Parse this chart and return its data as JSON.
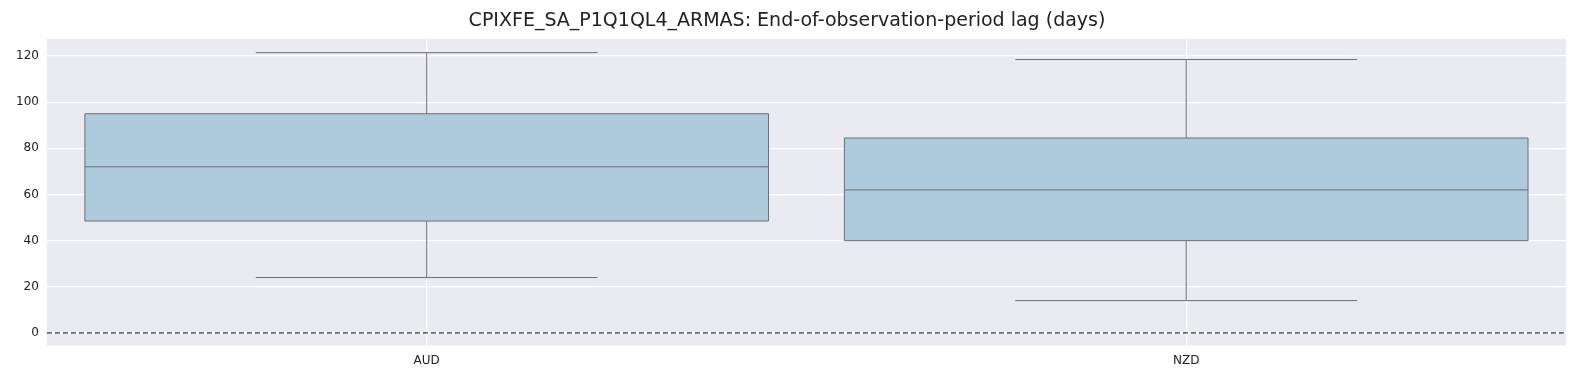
{
  "chart_data": {
    "type": "box",
    "title": "CPIXFE_SA_P1Q1QL4_ARMAS: End-of-observation-period lag (days)",
    "categories": [
      "AUD",
      "NZD"
    ],
    "boxes": [
      {
        "low": 24,
        "q1": 48.5,
        "median": 72,
        "q3": 95,
        "high": 121.5
      },
      {
        "low": 14,
        "q1": 40,
        "median": 62,
        "q3": 84.5,
        "high": 118.5
      }
    ],
    "color": "#aecbdd",
    "ylim": [
      -5.5,
      127.5
    ],
    "yticks": [
      0,
      20,
      40,
      60,
      80,
      100,
      120
    ],
    "grid": true,
    "ref_lines": [
      {
        "axis": "y",
        "value": 0,
        "color": "#000000",
        "line_style": "dashed"
      }
    ]
  }
}
